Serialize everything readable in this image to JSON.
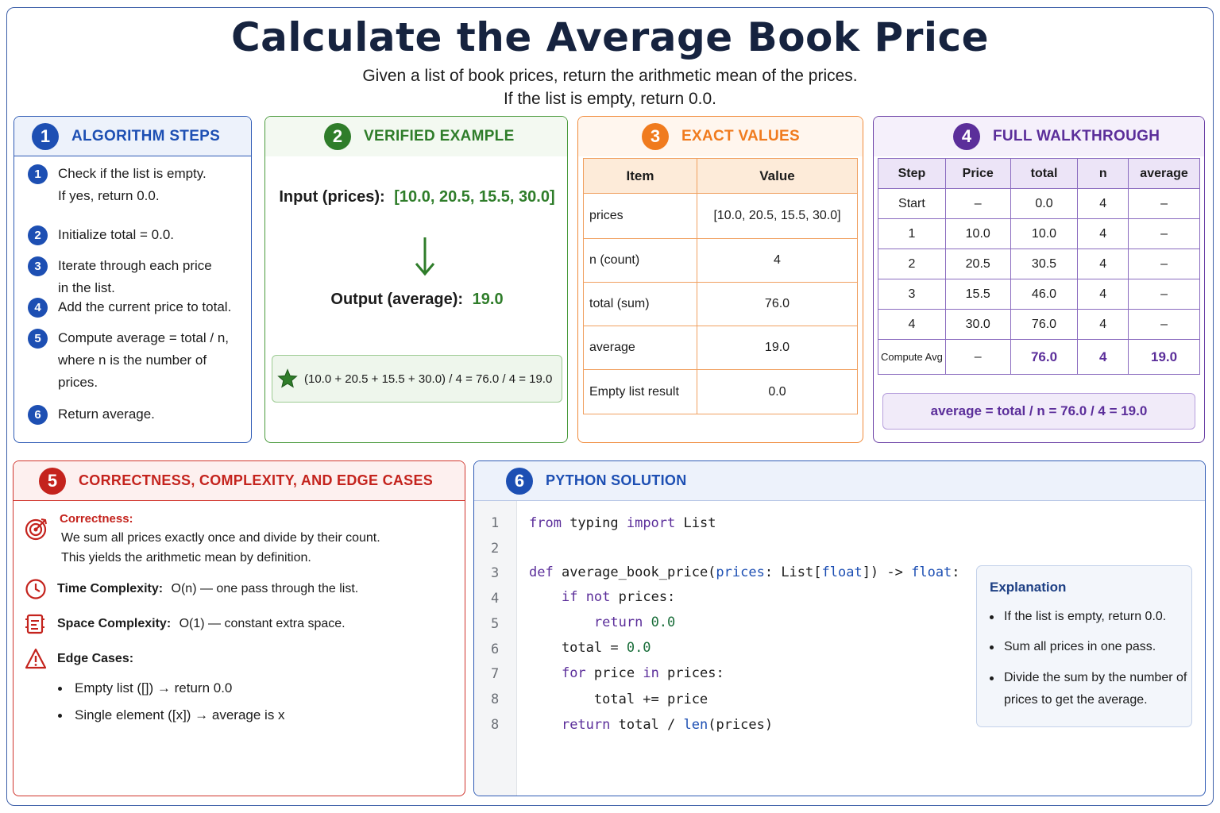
{
  "title": "Calculate the Average Book Price",
  "subtitle_line1": "Given a list of book prices, return the arithmetic mean of the prices.",
  "subtitle_line2": "If the list is empty, return 0.0.",
  "colors": {
    "blue": "#1d4fb3",
    "green": "#2f7d2a",
    "orange": "#f07b1e",
    "purple": "#5b2e9a",
    "red": "#c4231d"
  },
  "steps_panel": {
    "number": "1",
    "title": "ALGORITHM STEPS",
    "steps": [
      {
        "n": "1",
        "text": "Check if the list is empty.\nIf yes, return 0.0."
      },
      {
        "n": "2",
        "text": "Initialize total = 0.0."
      },
      {
        "n": "3",
        "text": "Iterate through each price\nin the list."
      },
      {
        "n": "4",
        "text": "Add the current price to total."
      },
      {
        "n": "5",
        "text": "Compute average = total / n,\nwhere n is the number of\nprices."
      },
      {
        "n": "6",
        "text": "Return average."
      }
    ]
  },
  "example_panel": {
    "number": "2",
    "title": "VERIFIED EXAMPLE",
    "input_label": "Input (prices):",
    "input_value": "[10.0, 20.5, 15.5, 30.0]",
    "output_label": "Output (average):",
    "output_value": "19.0",
    "calc_icon": "star-icon",
    "calc": "(10.0 + 20.5 + 15.5 + 30.0) / 4 = 76.0 / 4 = 19.0"
  },
  "values_panel": {
    "number": "3",
    "title": "EXACT VALUES",
    "headers": [
      "Item",
      "Value"
    ],
    "rows": [
      [
        "prices",
        "[10.0, 20.5, 15.5, 30.0]"
      ],
      [
        "n (count)",
        "4"
      ],
      [
        "total (sum)",
        "76.0"
      ],
      [
        "average",
        "19.0"
      ],
      [
        "Empty list result",
        "0.0"
      ]
    ]
  },
  "walk_panel": {
    "number": "4",
    "title": "FULL WALKTHROUGH",
    "headers": [
      "Step",
      "Price",
      "total",
      "n",
      "average"
    ],
    "rows": [
      [
        "Start",
        "–",
        "0.0",
        "4",
        "–"
      ],
      [
        "1",
        "10.0",
        "10.0",
        "4",
        "–"
      ],
      [
        "2",
        "20.5",
        "30.5",
        "4",
        "–"
      ],
      [
        "3",
        "15.5",
        "46.0",
        "4",
        "–"
      ],
      [
        "4",
        "30.0",
        "76.0",
        "4",
        "–"
      ],
      [
        "Compute Avg",
        "–",
        "76.0",
        "4",
        "19.0"
      ]
    ],
    "formula": "average = total / n = 76.0 / 4 = 19.0"
  },
  "correctness_panel": {
    "number": "5",
    "title": "CORRECTNESS, COMPLEXITY, AND EDGE CASES",
    "correctness_label": "Correctness:",
    "correctness_line1": "We sum all prices exactly once and divide by their count.",
    "correctness_line2": "This yields the arithmetic mean by definition.",
    "time_label": "Time Complexity:",
    "time_text": "O(n) — one pass through the list.",
    "space_label": "Space Complexity:",
    "space_text": "O(1) — constant extra space.",
    "edge_label": "Edge Cases:",
    "edge_cases": [
      "Empty list ([]) → return 0.0",
      "Single element ([x]) → average is x"
    ]
  },
  "code_panel": {
    "number": "6",
    "title": "PYTHON SOLUTION",
    "line_numbers": [
      "1",
      "2",
      "3",
      "4",
      "5",
      "6",
      "7",
      "8",
      "8"
    ],
    "explanation_title": "Explanation",
    "explanation": [
      "If the list is empty, return 0.0.",
      "Sum all prices in one pass.",
      "Divide the sum by the number of prices to get the average."
    ]
  }
}
